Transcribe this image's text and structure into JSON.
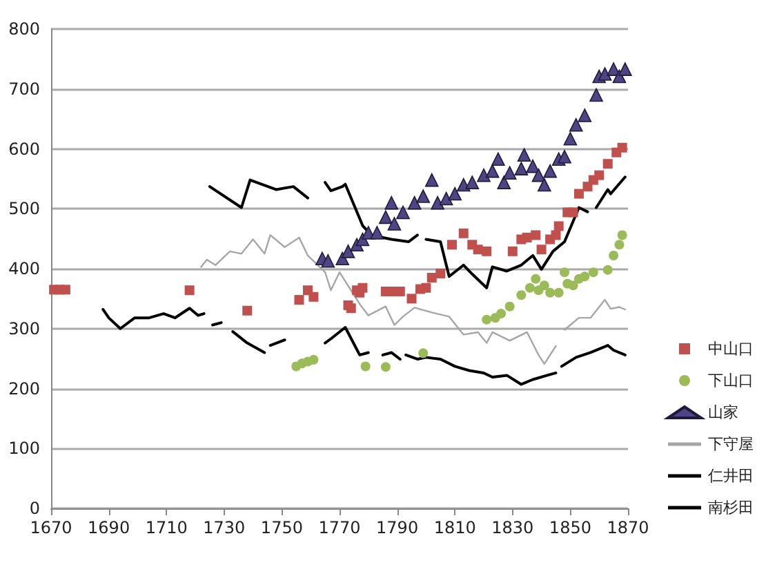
{
  "chart_data": {
    "type": "line",
    "xlim": [
      1670,
      1870
    ],
    "xticks": [
      1670,
      1690,
      1710,
      1730,
      1750,
      1770,
      1790,
      1810,
      1830,
      1850,
      1870
    ],
    "ylim": [
      0,
      800
    ],
    "yticks": [
      0,
      100,
      200,
      300,
      400,
      500,
      600,
      700,
      800
    ],
    "grid": "y",
    "legend": "right",
    "series": [
      {
        "name": "中山口",
        "type": "scatter",
        "marker": "square",
        "color": "#c0504d",
        "x": [
          1671,
          1673,
          1675,
          1718,
          1738,
          1756,
          1759,
          1761,
          1773,
          1774,
          1776,
          1777,
          1778,
          1786,
          1788,
          1791,
          1795,
          1798,
          1800,
          1802,
          1805,
          1809,
          1813,
          1816,
          1818,
          1821,
          1830,
          1833,
          1835,
          1838,
          1840,
          1843,
          1845,
          1846,
          1849,
          1851,
          1853,
          1856,
          1858,
          1860,
          1863,
          1866,
          1868
        ],
        "values": [
          365,
          365,
          365,
          364,
          330,
          348,
          364,
          353,
          339,
          334,
          364,
          360,
          368,
          362,
          362,
          362,
          350,
          366,
          368,
          385,
          392,
          440,
          459,
          440,
          432,
          429,
          429,
          449,
          452,
          456,
          432,
          449,
          456,
          471,
          494,
          494,
          525,
          537,
          548,
          556,
          575,
          594,
          602
        ]
      },
      {
        "name": "下山口",
        "type": "scatter",
        "marker": "circle",
        "color": "#9bbb59",
        "x": [
          1755,
          1757,
          1759,
          1761,
          1779,
          1786,
          1799,
          1821,
          1824,
          1826,
          1829,
          1833,
          1836,
          1838,
          1839,
          1841,
          1843,
          1846,
          1848,
          1849,
          1851,
          1853,
          1855,
          1858,
          1863,
          1865,
          1867,
          1868
        ],
        "values": [
          237,
          242,
          245,
          248,
          237,
          236,
          259,
          315,
          318,
          325,
          337,
          356,
          368,
          383,
          364,
          372,
          360,
          360,
          394,
          375,
          372,
          383,
          387,
          394,
          398,
          422,
          440,
          456
        ]
      },
      {
        "name": "山家",
        "type": "scatter",
        "marker": "triangle",
        "color": "#4f4585",
        "x": [
          1764,
          1766,
          1771,
          1773,
          1776,
          1778,
          1780,
          1783,
          1786,
          1788,
          1789,
          1792,
          1796,
          1799,
          1802,
          1804,
          1807,
          1810,
          1813,
          1816,
          1820,
          1823,
          1825,
          1827,
          1829,
          1833,
          1834,
          1837,
          1839,
          1841,
          1843,
          1846,
          1848,
          1850,
          1852,
          1855,
          1859,
          1860,
          1862,
          1865,
          1867,
          1869
        ],
        "values": [
          417,
          413,
          417,
          429,
          440,
          449,
          460,
          460,
          486,
          510,
          475,
          494,
          510,
          521,
          548,
          510,
          517,
          525,
          540,
          544,
          556,
          563,
          583,
          544,
          560,
          567,
          590,
          571,
          556,
          540,
          563,
          583,
          587,
          617,
          640,
          656,
          690,
          721,
          725,
          733,
          721,
          733
        ]
      },
      {
        "name": "下守屋",
        "marker": "none",
        "color": "#a6a6a6",
        "x": [
          1722,
          1724,
          1727,
          1732,
          1736,
          1740,
          1744,
          1746,
          1751,
          1756,
          1759,
          1765,
          1767,
          1770,
          1775,
          1777,
          1780,
          1786,
          1789,
          1792,
          1796,
          1802,
          1808,
          1813,
          1818,
          1821,
          1823,
          1829,
          1835,
          1839,
          1841,
          1845,
          1847,
          1848,
          1853,
          1857,
          1862,
          1864,
          1867,
          1869
        ],
        "values": [
          403,
          415,
          406,
          429,
          425,
          449,
          425,
          456,
          436,
          452,
          422,
          394,
          364,
          394,
          356,
          341,
          322,
          337,
          306,
          320,
          335,
          327,
          320,
          290,
          294,
          276,
          294,
          280,
          294,
          256,
          241,
          271,
          null,
          298,
          318,
          318,
          348,
          333,
          336,
          332
        ]
      },
      {
        "name": "仁井田",
        "marker": "none",
        "color": "#000000",
        "x": [
          1725,
          1736,
          1739,
          1748,
          1754,
          1759,
          1762,
          1765,
          1767,
          1771,
          1772,
          1778,
          1781,
          1788,
          1794,
          1797,
          1798,
          1800,
          1805,
          1808,
          1813,
          1816,
          1821,
          1823,
          1828,
          1833,
          1837,
          1840,
          1844,
          1848,
          1853,
          1856,
          1858,
          1859,
          1863,
          1864,
          1869
        ],
        "values": [
          537,
          502,
          548,
          532,
          537,
          518,
          null,
          544,
          530,
          537,
          541,
          472,
          456,
          449,
          445,
          456,
          null,
          449,
          445,
          387,
          406,
          391,
          368,
          403,
          396,
          406,
          422,
          399,
          429,
          445,
          502,
          495,
          null,
          502,
          532,
          525,
          553
        ]
      },
      {
        "name": "南杉田",
        "marker": "none",
        "color": "#000000",
        "x": [
          1688,
          1690,
          1694,
          1699,
          1704,
          1709,
          1713,
          1718,
          1721,
          1723,
          1725,
          1726,
          1729,
          1731,
          1733,
          1738,
          1744,
          1745,
          1746,
          1751,
          1755,
          1765,
          1767,
          1772,
          1777,
          1780,
          1782,
          1785,
          1788,
          1791,
          1792,
          1793,
          1797,
          1800,
          1805,
          1810,
          1815,
          1820,
          1823,
          1828,
          1833,
          1837,
          1842,
          1845,
          1846,
          1847,
          1852,
          1857,
          1863,
          1865,
          1869
        ],
        "values": [
          332,
          318,
          300,
          318,
          318,
          325,
          318,
          334,
          322,
          325,
          null,
          306,
          310,
          null,
          295,
          276,
          260,
          null,
          272,
          281,
          null,
          276,
          283,
          302,
          256,
          260,
          null,
          256,
          260,
          249,
          null,
          256,
          249,
          252,
          249,
          237,
          230,
          226,
          219,
          222,
          207,
          215,
          222,
          226,
          null,
          237,
          252,
          260,
          272,
          264,
          256
        ]
      }
    ]
  }
}
